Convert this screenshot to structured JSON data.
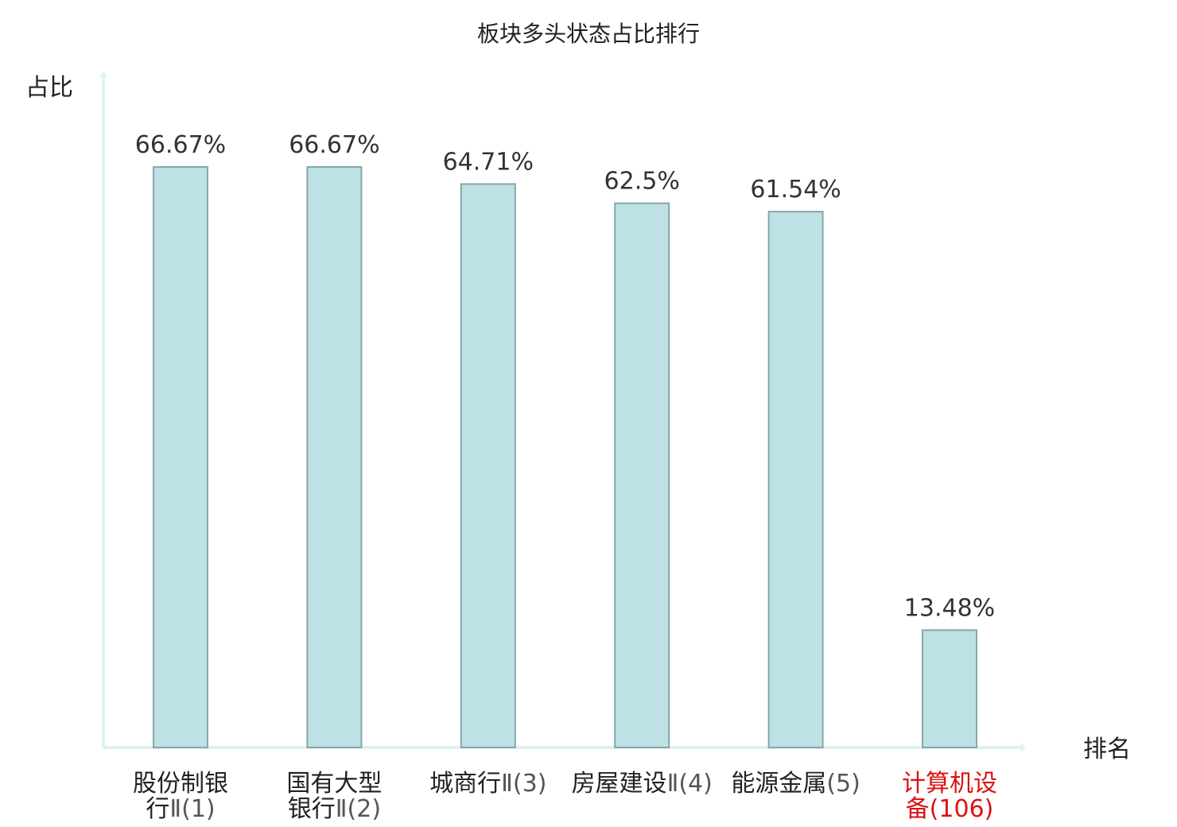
{
  "chart_data": {
    "type": "bar",
    "title": "板块多头状态占比排行",
    "ylabel": "占比",
    "xlabel": "排名",
    "ylim": [
      0,
      80
    ],
    "colors": {
      "bar_fill": "#bde1e4",
      "bar_stroke": "#86a7ab",
      "axis": "#ddf2ef",
      "text": "#222222",
      "highlight": "#dd1111"
    },
    "categories": [
      {
        "name_lines": [
          "股份制银",
          "行"
        ],
        "rank": "Ⅱ(1)",
        "highlight": false
      },
      {
        "name_lines": [
          "国有大型",
          "银行"
        ],
        "rank": "Ⅱ(2)",
        "highlight": false
      },
      {
        "name_lines": [
          "城商行"
        ],
        "rank": "Ⅱ(3)",
        "highlight": false
      },
      {
        "name_lines": [
          "房屋建设",
          ""
        ],
        "rank": "Ⅱ(4)",
        "highlight": false
      },
      {
        "name_lines": [
          "能源金属"
        ],
        "rank": "(5)",
        "highlight": false
      },
      {
        "name_lines": [
          "计算机设",
          "备"
        ],
        "rank": "(106)",
        "highlight": true
      }
    ],
    "values": [
      66.67,
      66.67,
      64.71,
      62.5,
      61.54,
      13.48
    ],
    "value_labels": [
      "66.67%",
      "66.67%",
      "64.71%",
      "62.5%",
      "61.54%",
      "13.48%"
    ]
  }
}
